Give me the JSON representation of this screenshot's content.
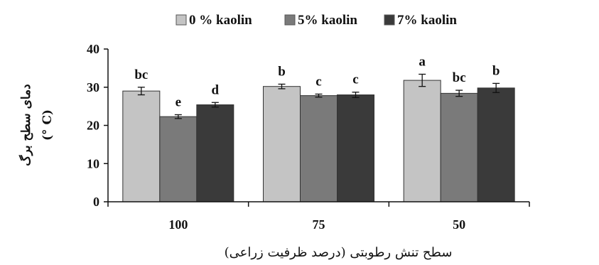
{
  "chart_data": {
    "type": "bar",
    "categories": [
      "100",
      "75",
      "50"
    ],
    "series": [
      {
        "name": "0 % kaolin",
        "color": "#c4c4c4",
        "values": [
          29.0,
          30.2,
          31.8
        ],
        "errors": [
          1.0,
          0.6,
          1.6
        ],
        "letters": [
          "bc",
          "b",
          "a"
        ]
      },
      {
        "name": "5% kaolin",
        "color": "#7a7a7a",
        "values": [
          22.3,
          27.8,
          28.4
        ],
        "errors": [
          0.5,
          0.4,
          0.8
        ],
        "letters": [
          "e",
          "c",
          "bc"
        ]
      },
      {
        "name": "7% kaolin",
        "color": "#3a3a3a",
        "values": [
          25.4,
          28.0,
          29.8
        ],
        "errors": [
          0.6,
          0.7,
          1.2
        ],
        "letters": [
          "d",
          "c",
          "b"
        ]
      }
    ],
    "xlabel": "سطح تنش رطوبتی (درصد ظرفیت زراعی)",
    "ylabel": "دمای سطح برگ",
    "yunit": "(° C)",
    "ylim": [
      0,
      40
    ],
    "yticks": [
      0,
      10,
      20,
      30,
      40
    ],
    "grid": false,
    "legend_position": "top"
  }
}
